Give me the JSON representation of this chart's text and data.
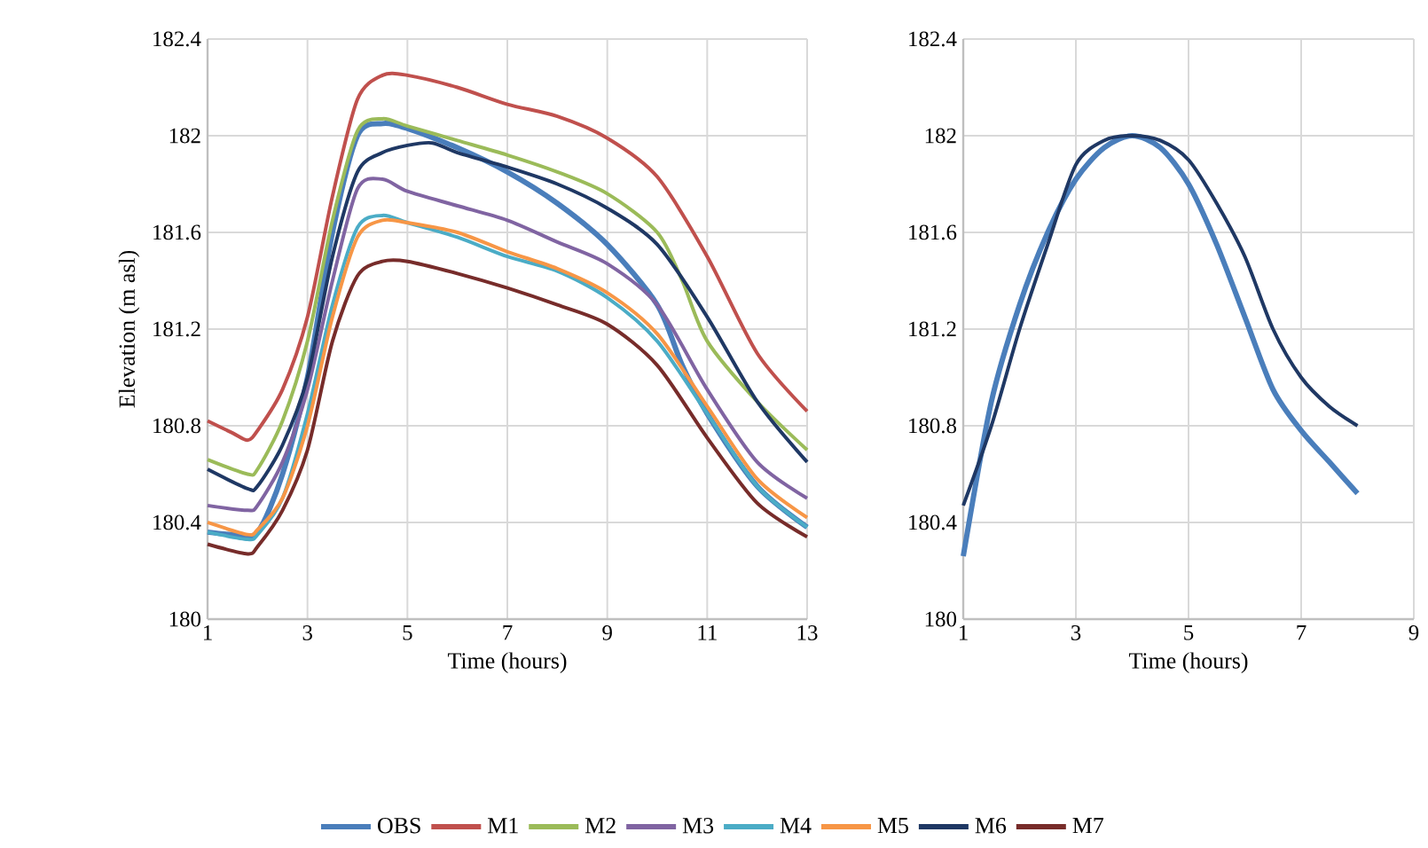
{
  "chart_data": [
    {
      "type": "line",
      "xlabel": "Time (hours)",
      "ylabel": "Elevation (m asl)",
      "xlim": [
        1,
        13
      ],
      "ylim": [
        180,
        182.4
      ],
      "xticks": [
        1,
        3,
        5,
        7,
        9,
        11,
        13
      ],
      "yticks": [
        180,
        180.4,
        180.8,
        181.2,
        181.6,
        182,
        182.4
      ],
      "grid": true,
      "legend": "bottom",
      "marker": "none",
      "line_style": "solid",
      "series": [
        {
          "name": "OBS",
          "color": "#4a7ebb",
          "x": [
            1,
            1.5,
            2,
            2.5,
            3,
            3.5,
            4,
            4.5,
            5,
            6,
            7,
            8,
            9,
            10,
            10.5,
            11,
            12,
            13
          ],
          "values": [
            180.36,
            180.35,
            180.36,
            180.6,
            181.0,
            181.6,
            182.0,
            182.05,
            182.03,
            181.95,
            181.85,
            181.72,
            181.55,
            181.3,
            181.05,
            180.85,
            180.55,
            180.38
          ]
        },
        {
          "name": "M1",
          "color": "#c0504d",
          "x": [
            1,
            1.5,
            1.8,
            2,
            2.5,
            3,
            3.5,
            4,
            4.5,
            5,
            6,
            7,
            8,
            9,
            10,
            11,
            12,
            13
          ],
          "values": [
            180.82,
            180.77,
            180.74,
            180.78,
            180.95,
            181.25,
            181.75,
            182.15,
            182.25,
            182.25,
            182.2,
            182.13,
            182.08,
            181.99,
            181.83,
            181.5,
            181.1,
            180.86
          ]
        },
        {
          "name": "M2",
          "color": "#9bbb59",
          "x": [
            1,
            1.8,
            2,
            2.5,
            3,
            3.5,
            4,
            4.5,
            5,
            6,
            7,
            8,
            9,
            10,
            10.5,
            11,
            12,
            13
          ],
          "values": [
            180.66,
            180.6,
            180.62,
            180.82,
            181.15,
            181.65,
            182.02,
            182.07,
            182.04,
            181.98,
            181.92,
            181.85,
            181.76,
            181.6,
            181.4,
            181.15,
            180.9,
            180.7
          ]
        },
        {
          "name": "M3",
          "color": "#8064a2",
          "x": [
            1,
            1.8,
            2,
            2.5,
            3,
            3.5,
            4,
            4.5,
            5,
            6,
            7,
            8,
            9,
            10,
            11,
            12,
            13
          ],
          "values": [
            180.47,
            180.45,
            180.47,
            180.65,
            180.95,
            181.4,
            181.78,
            181.82,
            181.77,
            181.71,
            181.65,
            181.56,
            181.47,
            181.3,
            180.95,
            180.65,
            180.5
          ]
        },
        {
          "name": "M4",
          "color": "#4bacc6",
          "x": [
            1,
            1.8,
            2,
            2.5,
            3,
            3.5,
            4,
            4.5,
            5,
            6,
            7,
            8,
            9,
            10,
            11,
            12,
            13
          ],
          "values": [
            180.36,
            180.33,
            180.35,
            180.5,
            180.85,
            181.3,
            181.62,
            181.67,
            181.64,
            181.58,
            181.5,
            181.44,
            181.33,
            181.15,
            180.85,
            180.55,
            180.38
          ]
        },
        {
          "name": "M5",
          "color": "#f79646",
          "x": [
            1,
            1.8,
            2,
            2.5,
            3,
            3.5,
            4,
            4.5,
            5,
            6,
            7,
            8,
            9,
            10,
            11,
            12,
            13
          ],
          "values": [
            180.4,
            180.35,
            180.37,
            180.5,
            180.8,
            181.25,
            181.58,
            181.65,
            181.64,
            181.6,
            181.52,
            181.45,
            181.35,
            181.18,
            180.88,
            180.58,
            180.42
          ]
        },
        {
          "name": "M6",
          "color": "#1f3864",
          "x": [
            1,
            1.8,
            2,
            2.5,
            3,
            3.5,
            4,
            4.5,
            5,
            5.5,
            6,
            7,
            8,
            9,
            10,
            11,
            12,
            13
          ],
          "values": [
            180.62,
            180.54,
            180.55,
            180.72,
            181.0,
            181.5,
            181.85,
            181.93,
            181.96,
            181.97,
            181.93,
            181.87,
            181.8,
            181.7,
            181.55,
            181.25,
            180.9,
            180.65
          ]
        },
        {
          "name": "M7",
          "color": "#772c2a",
          "x": [
            1,
            1.8,
            2,
            2.5,
            3,
            3.5,
            4,
            4.5,
            5,
            6,
            7,
            8,
            9,
            10,
            11,
            12,
            13
          ],
          "values": [
            180.31,
            180.27,
            180.3,
            180.45,
            180.7,
            181.15,
            181.42,
            181.48,
            181.48,
            181.43,
            181.37,
            181.3,
            181.22,
            181.05,
            180.75,
            180.48,
            180.34
          ]
        }
      ]
    },
    {
      "type": "line",
      "xlabel": "Time (hours)",
      "xlim": [
        1,
        9
      ],
      "ylim": [
        180,
        182.4
      ],
      "xticks": [
        1,
        3,
        5,
        7,
        9
      ],
      "yticks": [
        180,
        180.4,
        180.8,
        181.2,
        181.6,
        182,
        182.4
      ],
      "grid": true,
      "marker": "none",
      "line_style": "solid",
      "series": [
        {
          "color": "#4a7ebb",
          "x": [
            1,
            1.5,
            2,
            2.5,
            3,
            3.5,
            4,
            4.5,
            5,
            5.5,
            6,
            6.5,
            7,
            7.5,
            8
          ],
          "values": [
            180.26,
            180.9,
            181.3,
            181.6,
            181.82,
            181.95,
            182.0,
            181.95,
            181.8,
            181.55,
            181.25,
            180.95,
            180.78,
            180.65,
            180.52
          ]
        },
        {
          "color": "#1f3864",
          "x": [
            1,
            1.5,
            2,
            2.5,
            3,
            3.5,
            4,
            4.5,
            5,
            5.5,
            6,
            6.5,
            7,
            7.5,
            8
          ],
          "values": [
            180.47,
            180.8,
            181.2,
            181.55,
            181.88,
            181.98,
            182.0,
            181.98,
            181.9,
            181.72,
            181.5,
            181.2,
            181.0,
            180.88,
            180.8
          ]
        }
      ]
    }
  ]
}
